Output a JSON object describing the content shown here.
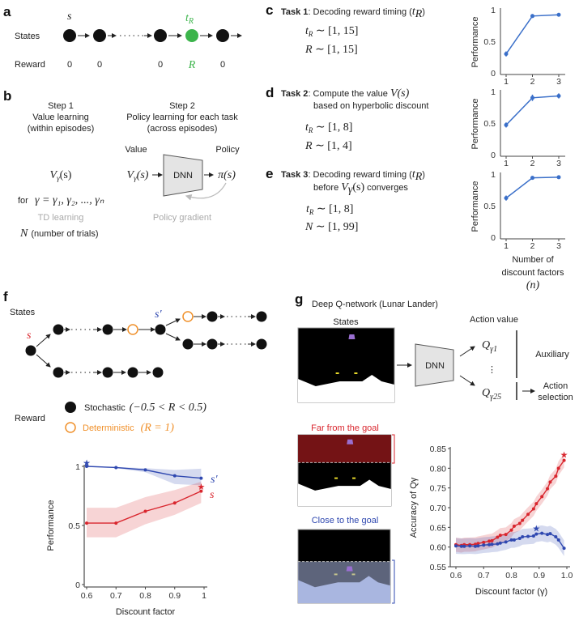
{
  "colors": {
    "green": "#3cb44b",
    "orange": "#f0902a",
    "red": "#d9262e",
    "blue": "#2f48b0",
    "line_blue": "#3a6fc9",
    "dark_red": "#7a1416",
    "dark_blue": "#26345e",
    "light_blue": "#a9b6e0"
  },
  "panel_labels": {
    "a": "a",
    "b": "b",
    "c": "c",
    "d": "d",
    "e": "e",
    "f": "f",
    "g": "g"
  },
  "a": {
    "s": "s",
    "tR": {
      "v": "t",
      "sub": "R"
    },
    "states": "States",
    "reward": "Reward",
    "rewards": [
      "0",
      "0",
      "0",
      "R",
      "0"
    ]
  },
  "b": {
    "step1": [
      "Step 1",
      "Value learning",
      "(within episodes)"
    ],
    "step2": [
      "Step 2",
      "Policy learning for each task",
      "(across episodes)"
    ],
    "value": "Value",
    "policy": "Policy",
    "dnn": "DNN",
    "v1": {
      "v": "V",
      "sub": "γ",
      "rest": "(s)"
    },
    "pi": {
      "v": "π",
      "rest": "(s)"
    },
    "for": "for",
    "gamma_eq": "γ = γ₁, γ₂, ..., γₙ",
    "td": "TD learning",
    "pg": "Policy gradient",
    "N": "N",
    "N_desc": "(number of trials)"
  },
  "c": {
    "bold": "Task 1",
    "title": ": Decoding reward timing (",
    "tv": "t",
    "tsub": "R",
    "close": ")",
    "eq": [
      {
        "v": "t",
        "sub": "R",
        "rest": " ∼ [1, 15]"
      },
      {
        "v": "R",
        "sub": "",
        "rest": " ∼ [1, 15]"
      }
    ]
  },
  "d": {
    "bold": "Task 2",
    "title": ": Compute the value ",
    "vv": "V(s)",
    "line2": "based on hyperbolic discount",
    "eq": [
      {
        "v": "t",
        "sub": "R",
        "rest": " ∼ [1, 8]"
      },
      {
        "v": "R",
        "sub": "",
        "rest": " ∼ [1, 4]"
      }
    ]
  },
  "e": {
    "bold": "Task 3",
    "title": ": Decoding reward timing (",
    "tv": "t",
    "tsub": "R",
    "close": ")",
    "line2a": "before ",
    "line2v": "V",
    "line2sub": "γ",
    "line2r": "(s)",
    "line2b": " converges",
    "eq": [
      {
        "v": "t",
        "sub": "R",
        "rest": " ∼ [1, 8]"
      },
      {
        "v": "N",
        "sub": "",
        "rest": " ∼ [1, 99]"
      }
    ]
  },
  "f": {
    "states": "States",
    "s": "s",
    "sp": "s′",
    "reward": "Reward",
    "stoch": "Stochastic",
    "stoch_m": "(−0.5 < R < 0.5)",
    "det": "Deterministic",
    "det_m": "(R = 1)"
  },
  "g": {
    "title": "Deep Q-network (Lunar Lander)",
    "states": "States",
    "dnn": "DNN",
    "action_value": "Action value",
    "q1": {
      "v": "Q",
      "sub": "γ1"
    },
    "q25": {
      "v": "Q",
      "sub": "γ25"
    },
    "vdots": "⋮",
    "auxiliary": "Auxiliary",
    "action_sel": [
      "Action",
      "selection"
    ],
    "far": "Far from the goal",
    "close": "Close to the goal"
  },
  "chart_data": [
    {
      "id": "c",
      "type": "line",
      "ylabel": "Performance",
      "x": [
        1,
        2,
        3
      ],
      "values": [
        0.3,
        0.9,
        0.92
      ],
      "err": [
        0.04,
        0.03,
        0.02
      ],
      "yticks": [
        "0",
        "0.5",
        "1"
      ],
      "xticks": [
        "1",
        "2",
        "3"
      ],
      "ylim": [
        0,
        1
      ]
    },
    {
      "id": "d",
      "type": "line",
      "ylabel": "Performance",
      "x": [
        1,
        2,
        3
      ],
      "values": [
        0.47,
        0.9,
        0.93
      ],
      "err": [
        0.04,
        0.05,
        0.04
      ],
      "yticks": [
        "0",
        "0.5",
        "1"
      ],
      "xticks": [
        "1",
        "2",
        "3"
      ],
      "ylim": [
        0,
        1
      ]
    },
    {
      "id": "e",
      "type": "line",
      "ylabel": "Performance",
      "x": [
        1,
        2,
        3
      ],
      "values": [
        0.62,
        0.94,
        0.95
      ],
      "err": [
        0.04,
        0.02,
        0.02
      ],
      "yticks": [
        "0",
        "0.5",
        "1"
      ],
      "xticks": [
        "1",
        "2",
        "3"
      ],
      "ylim": [
        0,
        1
      ],
      "xlabel": [
        "Number of",
        "discount factors",
        "(n)"
      ]
    },
    {
      "id": "f",
      "type": "line",
      "ylabel": "Performance",
      "xlabel": "Discount factor",
      "xlim": [
        0.6,
        1.0
      ],
      "ylim": [
        0,
        1
      ],
      "xticks": [
        "0.6",
        "0.7",
        "0.8",
        "0.9",
        "1"
      ],
      "yticks": [
        "0",
        "0.5",
        "1"
      ],
      "series": [
        {
          "name": "s′",
          "color": "#2f48b0",
          "x": [
            0.6,
            0.7,
            0.8,
            0.9,
            0.99
          ],
          "values": [
            1.0,
            0.99,
            0.97,
            0.92,
            0.9
          ],
          "lower": [
            0.995,
            0.985,
            0.95,
            0.85,
            0.84
          ],
          "upper": [
            1.0,
            0.995,
            0.985,
            0.97,
            0.98
          ],
          "star": [
            0.6,
            1.03
          ]
        },
        {
          "name": "s",
          "color": "#d9262e",
          "x": [
            0.6,
            0.7,
            0.8,
            0.9,
            0.99
          ],
          "values": [
            0.52,
            0.52,
            0.62,
            0.69,
            0.79
          ],
          "lower": [
            0.4,
            0.4,
            0.51,
            0.59,
            0.69
          ],
          "upper": [
            0.65,
            0.65,
            0.74,
            0.8,
            0.87
          ],
          "star": [
            0.99,
            0.83
          ]
        }
      ]
    },
    {
      "id": "g",
      "type": "line",
      "ylabel": "Accuracy of Qγ",
      "xlabel": "Discount factor (γ)",
      "xlim": [
        0.6,
        1.0
      ],
      "ylim": [
        0.55,
        0.85
      ],
      "xticks": [
        "0.6",
        "0.7",
        "0.8",
        "0.9",
        "1.0"
      ],
      "yticks": [
        "0.55",
        "0.60",
        "0.65",
        "0.70",
        "0.75",
        "0.80",
        "0.85"
      ],
      "series": [
        {
          "name": "Far from the goal",
          "color": "#d9262e",
          "x": [
            0.6,
            0.62,
            0.63,
            0.65,
            0.67,
            0.68,
            0.7,
            0.72,
            0.73,
            0.75,
            0.76,
            0.78,
            0.8,
            0.81,
            0.83,
            0.84,
            0.86,
            0.88,
            0.89,
            0.91,
            0.93,
            0.94,
            0.96,
            0.97,
            0.99
          ],
          "values": [
            0.606,
            0.604,
            0.606,
            0.606,
            0.607,
            0.609,
            0.612,
            0.615,
            0.616,
            0.625,
            0.63,
            0.632,
            0.643,
            0.653,
            0.66,
            0.668,
            0.683,
            0.697,
            0.71,
            0.728,
            0.748,
            0.765,
            0.78,
            0.8,
            0.82
          ],
          "band": 0.018,
          "star": [
            0.99,
            0.835
          ]
        },
        {
          "name": "Close to the goal",
          "color": "#2f48b0",
          "x": [
            0.6,
            0.62,
            0.63,
            0.65,
            0.67,
            0.68,
            0.7,
            0.72,
            0.73,
            0.75,
            0.76,
            0.78,
            0.8,
            0.81,
            0.83,
            0.84,
            0.86,
            0.88,
            0.89,
            0.91,
            0.93,
            0.94,
            0.96,
            0.97,
            0.99
          ],
          "values": [
            0.603,
            0.602,
            0.602,
            0.603,
            0.602,
            0.603,
            0.605,
            0.606,
            0.607,
            0.608,
            0.61,
            0.613,
            0.618,
            0.618,
            0.622,
            0.626,
            0.627,
            0.628,
            0.633,
            0.635,
            0.632,
            0.634,
            0.626,
            0.618,
            0.597
          ],
          "band": 0.02,
          "star": [
            0.89,
            0.648
          ]
        }
      ]
    }
  ]
}
